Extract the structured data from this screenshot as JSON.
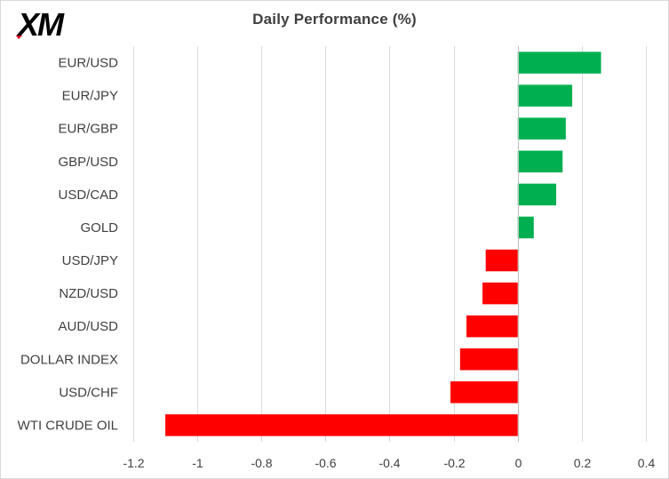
{
  "header": {
    "logo_text": "XM"
  },
  "chart_data": {
    "type": "bar",
    "orientation": "horizontal",
    "title": "Daily Performance  (%)",
    "categories": [
      "EUR/USD",
      "EUR/JPY",
      "EUR/GBP",
      "GBP/USD",
      "USD/CAD",
      "GOLD",
      "USD/JPY",
      "NZD/USD",
      "AUD/USD",
      "DOLLAR INDEX",
      "USD/CHF",
      "WTI CRUDE OIL"
    ],
    "values": [
      0.26,
      0.17,
      0.15,
      0.14,
      0.12,
      0.05,
      -0.1,
      -0.11,
      -0.16,
      -0.18,
      -0.21,
      -1.1
    ],
    "xlim": [
      -1.2,
      0.4
    ],
    "x_ticks": [
      "-1.2",
      "-1",
      "-0.8",
      "-0.6",
      "-0.4",
      "-0.2",
      "0",
      "0.2",
      "0.4"
    ],
    "x_tick_values": [
      -1.2,
      -1.0,
      -0.8,
      -0.6,
      -0.4,
      -0.2,
      0,
      0.2,
      0.4
    ],
    "grid": "vertical",
    "colors": {
      "positive": "#00b050",
      "negative": "#ff0000",
      "gridline": "#d9d9d9",
      "text": "#404040",
      "logo": "#000000",
      "logo_accent": "#e2001a"
    }
  }
}
